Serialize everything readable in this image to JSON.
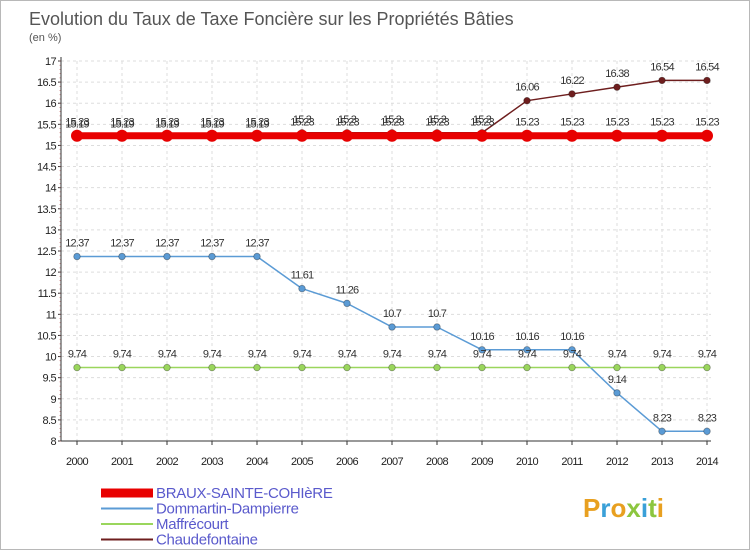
{
  "chart_data": {
    "type": "line",
    "title": "Evolution du Taux de Taxe Foncière sur les Propriétés Bâties",
    "subtitle": "(en %)",
    "xlabel": "",
    "ylabel": "",
    "ylim": [
      8,
      17
    ],
    "yticks": [
      "8",
      "8.5",
      "9",
      "9.5",
      "10",
      "10.5",
      "11",
      "11.5",
      "12",
      "12.5",
      "13",
      "13.5",
      "14",
      "14.5",
      "15",
      "15.5",
      "16",
      "16.5",
      "17"
    ],
    "categories": [
      "2000",
      "2001",
      "2002",
      "2003",
      "2004",
      "2005",
      "2006",
      "2007",
      "2008",
      "2009",
      "2010",
      "2011",
      "2012",
      "2013",
      "2014"
    ],
    "series": [
      {
        "name": "Chaudefontaine",
        "color": "#6e1e1e",
        "values": [
          15.19,
          15.19,
          15.19,
          15.19,
          15.19,
          15.3,
          15.3,
          15.3,
          15.3,
          15.3,
          16.06,
          16.22,
          16.38,
          16.54,
          16.54
        ],
        "labels": [
          "15.19",
          "15.19",
          "15.19",
          "15.19",
          "15.19",
          "15.3",
          "15.3",
          "15.3",
          "15.3",
          "15.3",
          "16.06",
          "16.22",
          "16.38",
          "16.54",
          "16.54"
        ]
      },
      {
        "name": "Dommartin-Dampierre",
        "color": "#5b9bd5",
        "values": [
          12.37,
          12.37,
          12.37,
          12.37,
          12.37,
          11.61,
          11.26,
          10.7,
          10.7,
          10.16,
          10.16,
          10.16,
          9.14,
          8.23,
          8.23
        ],
        "labels": [
          "12.37",
          "12.37",
          "12.37",
          "12.37",
          "12.37",
          "11.61",
          "11.26",
          "10.7",
          "10.7",
          "10.16",
          "10.16",
          "10.16",
          "9.14",
          "8.23",
          "8.23"
        ]
      },
      {
        "name": "Maffrécourt",
        "color": "#9ad65c",
        "values": [
          9.74,
          9.74,
          9.74,
          9.74,
          9.74,
          9.74,
          9.74,
          9.74,
          9.74,
          9.74,
          9.74,
          9.74,
          9.74,
          9.74,
          9.74
        ],
        "labels": [
          "9.74",
          "9.74",
          "9.74",
          "9.74",
          "9.74",
          "9.74",
          "9.74",
          "9.74",
          "9.74",
          "9.74",
          "9.74",
          "9.74",
          "9.74",
          "9.74",
          "9.74"
        ]
      },
      {
        "name": "BRAUX-SAINTE-COHIèRE",
        "color": "#e80000",
        "values": [
          15.23,
          15.23,
          15.23,
          15.23,
          15.23,
          15.23,
          15.23,
          15.23,
          15.23,
          15.23,
          15.23,
          15.23,
          15.23,
          15.23,
          15.23
        ],
        "labels": [
          "15.23",
          "15.23",
          "15.23",
          "15.23",
          "15.23",
          "15.23",
          "15.23",
          "15.23",
          "15.23",
          "15.23",
          "15.23",
          "15.23",
          "15.23",
          "15.23",
          "15.23"
        ]
      }
    ],
    "legend": [
      "BRAUX-SAINTE-COHIèRE",
      "Dommartin-Dampierre",
      "Maffrécourt",
      "Chaudefontaine"
    ],
    "legend_position": "bottom-left"
  },
  "logo": {
    "text": "Proxiti",
    "colors": [
      "#e8a020",
      "#3aa0d8",
      "#e8a020",
      "#8cc63f",
      "#3aa0d8",
      "#8cc63f",
      "#e8a020"
    ]
  }
}
